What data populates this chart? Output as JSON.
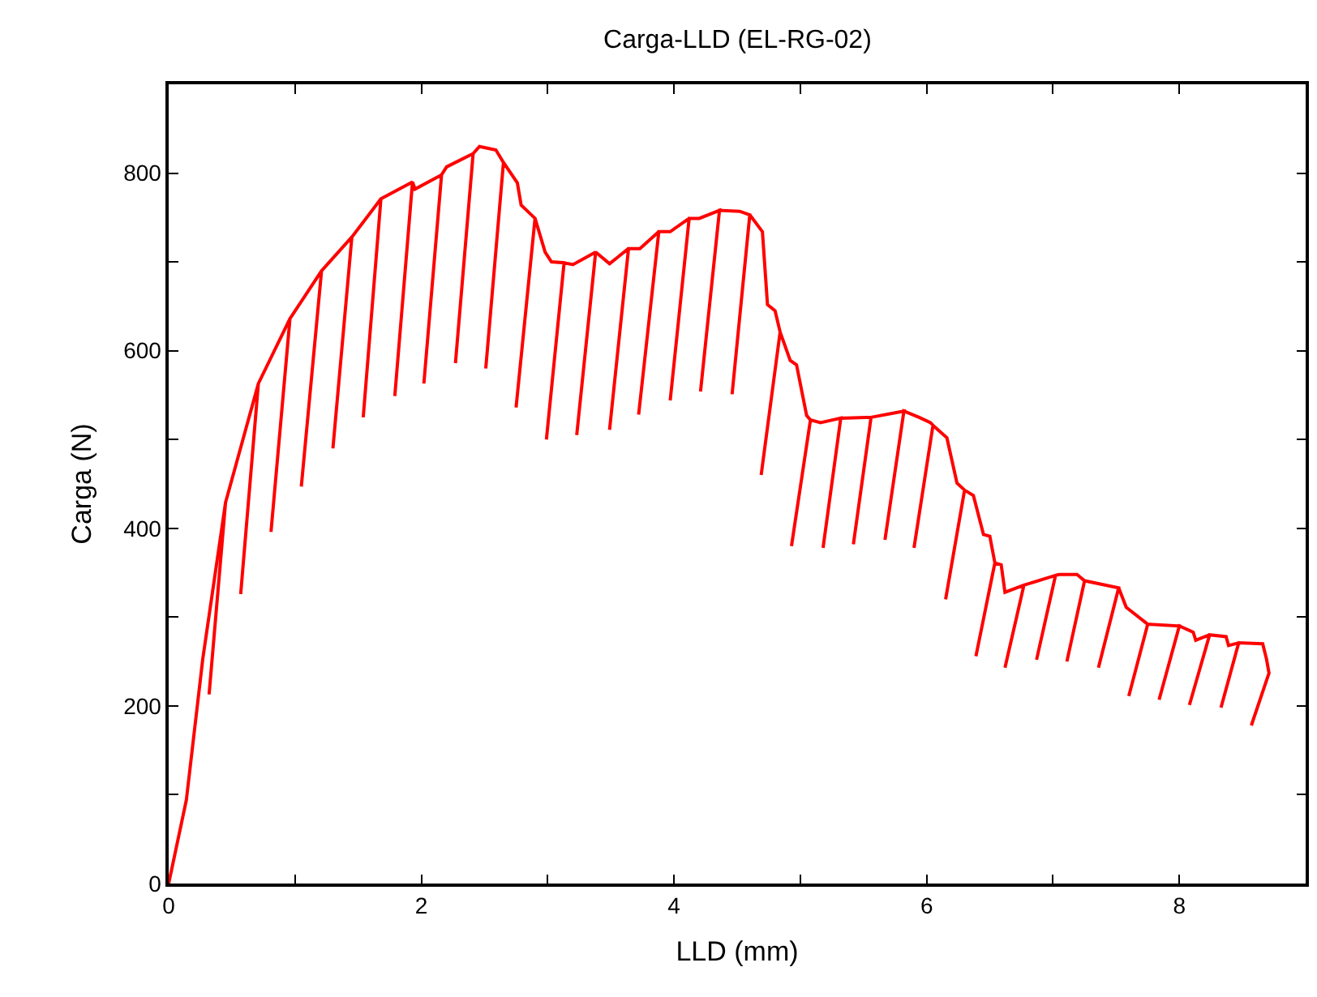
{
  "chart_data": {
    "type": "line",
    "title": "Carga-LLD (EL-RG-02)",
    "xlabel": "LLD (mm)",
    "ylabel": "Carga (N)",
    "xlim": [
      0,
      9
    ],
    "ylim": [
      0,
      900
    ],
    "xticks": [
      0,
      {
        "value": 1,
        "label": null
      },
      2,
      {
        "value": 3,
        "label": null
      },
      4,
      {
        "value": 5,
        "label": null
      },
      6,
      {
        "value": 7,
        "label": null
      },
      8,
      {
        "value": 9,
        "label": null
      }
    ],
    "yticks": [
      0,
      {
        "value": 100,
        "label": null
      },
      200,
      {
        "value": 300,
        "label": null
      },
      400,
      {
        "value": 500,
        "label": null
      },
      600,
      {
        "value": 700,
        "label": null
      },
      800,
      {
        "value": 900,
        "label": null
      }
    ],
    "marker": "none",
    "line_style": "solid",
    "series": [
      {
        "color": "#ff0000",
        "x": [
          0,
          0.14,
          0.27,
          0.45,
          0.32,
          0.45,
          0.71,
          0.57,
          0.71,
          0.96,
          0.81,
          0.96,
          1.21,
          1.05,
          1.21,
          1.45,
          1.3,
          1.45,
          1.68,
          1.54,
          1.68,
          1.93,
          1.79,
          1.93,
          1.95,
          2.16,
          2.02,
          2.16,
          2.2,
          2.41,
          2.27,
          2.41,
          2.46,
          2.59,
          2.65,
          2.51,
          2.65,
          2.76,
          2.79,
          2.9,
          2.75,
          2.9,
          2.98,
          3.03,
          3.13,
          2.99,
          3.13,
          3.2,
          3.38,
          3.23,
          3.38,
          3.49,
          3.64,
          3.49,
          3.64,
          3.73,
          3.88,
          3.72,
          3.88,
          3.97,
          4.12,
          3.97,
          4.12,
          4.2,
          4.36,
          4.21,
          4.36,
          4.52,
          4.6,
          4.46,
          4.6,
          4.7,
          4.74,
          4.8,
          4.84,
          4.69,
          4.84,
          4.92,
          4.97,
          5.05,
          5.08,
          4.93,
          5.08,
          5.16,
          5.32,
          5.18,
          5.32,
          5.56,
          5.42,
          5.56,
          5.82,
          5.67,
          5.82,
          5.94,
          6.03,
          6.05,
          5.9,
          6.05,
          6.16,
          6.24,
          6.3,
          6.15,
          6.3,
          6.37,
          6.45,
          6.5,
          6.54,
          6.39,
          6.54,
          6.59,
          6.62,
          6.77,
          6.62,
          6.77,
          7.02,
          6.87,
          7.02,
          7.05,
          7.19,
          7.25,
          7.11,
          7.25,
          7.52,
          7.36,
          7.52,
          7.58,
          7.75,
          7.6,
          7.75,
          8.0,
          7.84,
          8.0,
          8.11,
          8.13,
          8.24,
          8.08,
          8.24,
          8.37,
          8.39,
          8.47,
          8.33,
          8.47,
          8.66,
          8.69,
          8.71,
          8.57
        ],
        "values": [
          0,
          94,
          253,
          429,
          213,
          429,
          563,
          326,
          563,
          636,
          396,
          636,
          690,
          447,
          690,
          728,
          490,
          728,
          771,
          525,
          771,
          790,
          549,
          790,
          782,
          798,
          563,
          798,
          807,
          822,
          586,
          822,
          830,
          826,
          812,
          580,
          812,
          789,
          764,
          749,
          536,
          749,
          711,
          700,
          699,
          500,
          699,
          697,
          711,
          505,
          711,
          698,
          715,
          511,
          715,
          715,
          734,
          528,
          734,
          734,
          749,
          544,
          749,
          749,
          758,
          554,
          758,
          757,
          753,
          551,
          753,
          734,
          652,
          645,
          621,
          460,
          621,
          589,
          584,
          527,
          522,
          380,
          522,
          519,
          524,
          378,
          524,
          525,
          382,
          525,
          532,
          387,
          532,
          525,
          519,
          516,
          378,
          516,
          502,
          451,
          443,
          320,
          443,
          437,
          393,
          391,
          361,
          256,
          361,
          359,
          328,
          336,
          243,
          336,
          347,
          252,
          347,
          348,
          348,
          341,
          250,
          341,
          333,
          243,
          333,
          311,
          292,
          211,
          292,
          290,
          207,
          290,
          283,
          274,
          280,
          201,
          280,
          278,
          268,
          271,
          198,
          271,
          270,
          253,
          237,
          178
        ]
      }
    ]
  }
}
